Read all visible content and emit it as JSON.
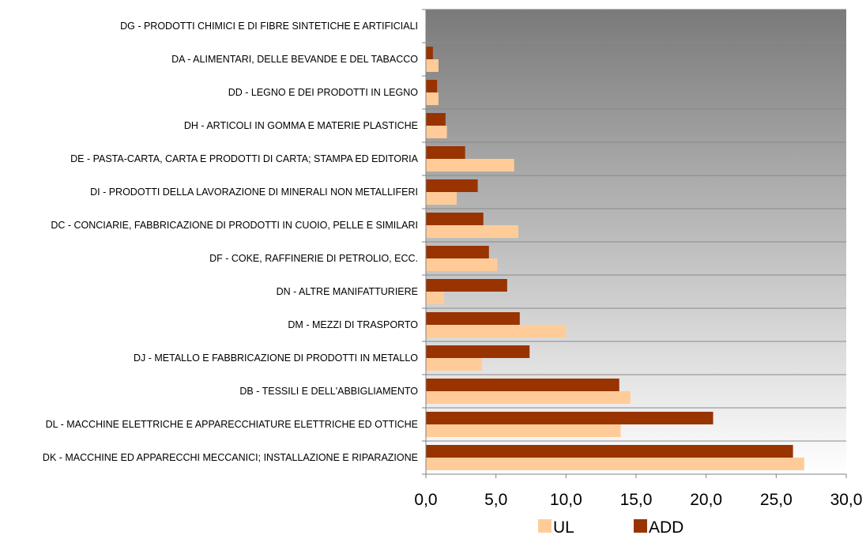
{
  "chart_data": {
    "type": "bar",
    "orientation": "horizontal",
    "title": "",
    "xlabel": "",
    "ylabel": "",
    "xlim": [
      0,
      30
    ],
    "x_ticks": [
      "0,0",
      "5,0",
      "10,0",
      "15,0",
      "20,0",
      "25,0",
      "30,0"
    ],
    "grid": "horizontal category gridlines",
    "legend_position": "bottom",
    "categories": [
      "DG - PRODOTTI CHIMICI E DI FIBRE SINTETICHE E ARTIFICIALI",
      "DA - ALIMENTARI, DELLE BEVANDE E DEL TABACCO",
      "DD - LEGNO E DEI PRODOTTI IN LEGNO",
      "DH - ARTICOLI IN GOMMA E MATERIE PLASTICHE",
      "DE - PASTA-CARTA, CARTA E PRODOTTI DI CARTA; STAMPA ED EDITORIA",
      "DI - PRODOTTI DELLA LAVORAZIONE DI MINERALI NON METALLIFERI",
      "DC - CONCIARIE, FABBRICAZIONE DI PRODOTTI IN CUOIO, PELLE E SIMILARI",
      "DF - COKE, RAFFINERIE DI PETROLIO, ECC.",
      "DN - ALTRE MANIFATTURIERE",
      "DM - MEZZI DI TRASPORTO",
      "DJ - METALLO E FABBRICAZIONE DI PRODOTTI IN METALLO",
      "DB - TESSILI E DELL'ABBIGLIAMENTO",
      "DL - MACCHINE ELETTRICHE E APPARECCHIATURE ELETTRICHE ED OTTICHE",
      "DK - MACCHINE ED APPARECCHI MECCANICI; INSTALLAZIONE E RIPARAZIONE"
    ],
    "series": [
      {
        "name": "UL",
        "color": "#FFCC99",
        "values": [
          0.0,
          0.9,
          0.9,
          1.5,
          6.3,
          2.2,
          6.6,
          5.1,
          1.3,
          10.0,
          4.0,
          14.6,
          13.9,
          27.0
        ]
      },
      {
        "name": "ADD",
        "color": "#993300",
        "values": [
          0.0,
          0.5,
          0.8,
          1.4,
          2.8,
          3.7,
          4.1,
          4.5,
          5.8,
          6.7,
          7.4,
          13.8,
          20.5,
          26.2
        ]
      }
    ],
    "plot_background": "gradient dark gray (top) to white (bottom)"
  }
}
